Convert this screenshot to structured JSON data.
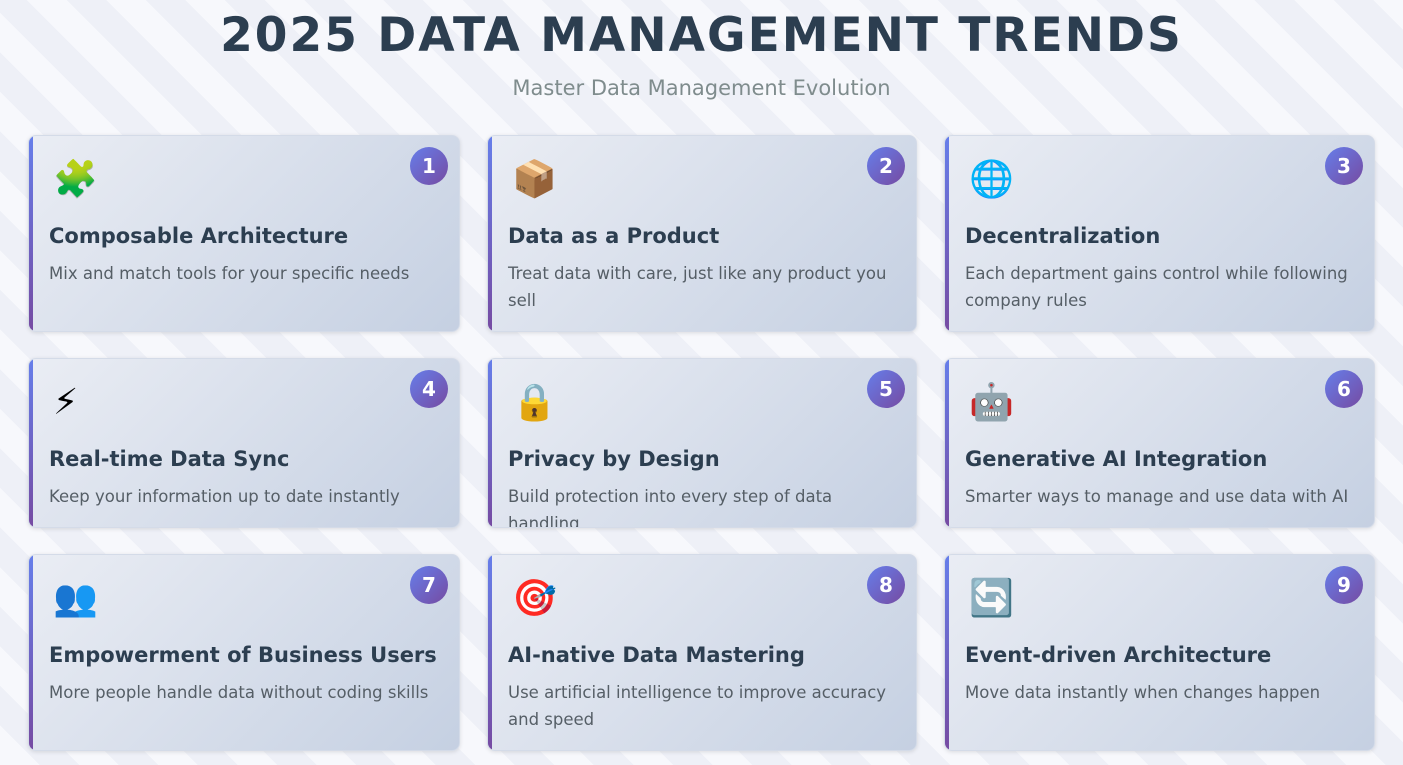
{
  "header": {
    "title": "2025 DATA MANAGEMENT TRENDS",
    "subtitle": "Master Data Management Evolution"
  },
  "colors": {
    "accent_start": "#667eea",
    "accent_end": "#764ba2",
    "title": "#2c3e50"
  },
  "cards": [
    {
      "number": "1",
      "icon": "🧩",
      "icon_name": "puzzle-icon",
      "title": "Composable Architecture",
      "desc": "Mix and match tools for your specific needs"
    },
    {
      "number": "2",
      "icon": "📦",
      "icon_name": "package-icon",
      "title": "Data as a Product",
      "desc": "Treat data with care, just like any product you sell"
    },
    {
      "number": "3",
      "icon": "🌐",
      "icon_name": "globe-icon",
      "title": "Decentralization",
      "desc": "Each department gains control while following company rules"
    },
    {
      "number": "4",
      "icon": "⚡",
      "icon_name": "lightning-icon",
      "title": "Real-time Data Sync",
      "desc": "Keep your information up to date instantly"
    },
    {
      "number": "5",
      "icon": "🔒",
      "icon_name": "lock-icon",
      "title": "Privacy by Design",
      "desc": "Build protection into every step of data handling"
    },
    {
      "number": "6",
      "icon": "🤖",
      "icon_name": "robot-icon",
      "title": "Generative AI Integration",
      "desc": "Smarter ways to manage and use data with AI"
    },
    {
      "number": "7",
      "icon": "👥",
      "icon_name": "users-icon",
      "title": "Empowerment of Business Users",
      "desc": "More people handle data without coding skills"
    },
    {
      "number": "8",
      "icon": "🎯",
      "icon_name": "target-icon",
      "title": "AI-native Data Mastering",
      "desc": "Use artificial intelligence to improve accuracy and speed"
    },
    {
      "number": "9",
      "icon": "🔄",
      "icon_name": "refresh-icon",
      "title": "Event-driven Architecture",
      "desc": "Move data instantly when changes happen"
    }
  ]
}
